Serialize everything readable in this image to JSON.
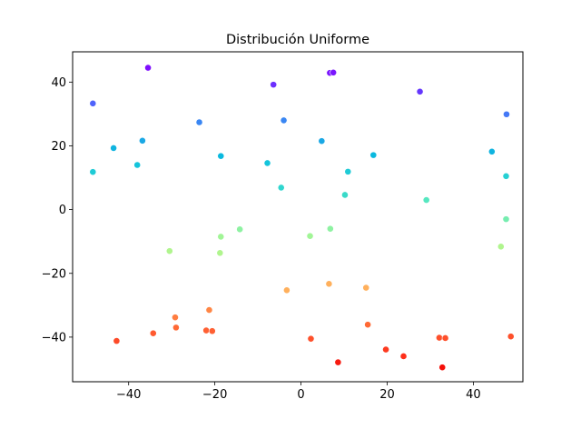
{
  "chart_data": {
    "type": "scatter",
    "title": "Distribución Uniforme",
    "xlabel": "",
    "ylabel": "",
    "xlim": [
      -53,
      51.5
    ],
    "ylim": [
      -54,
      49.5
    ],
    "xticks": [
      -40,
      -20,
      0,
      20,
      40
    ],
    "yticks": [
      -40,
      -20,
      0,
      20,
      40
    ],
    "xtick_labels": [
      "−40",
      "−20",
      "0",
      "20",
      "40"
    ],
    "ytick_labels": [
      "−40",
      "−20",
      "0",
      "20",
      "40"
    ],
    "grid": false,
    "colormap": "rainbow",
    "points": [
      {
        "x": -35.5,
        "y": 44.5,
        "color": "#7f0ffe"
      },
      {
        "x": 6.7,
        "y": 42.9,
        "color": "#7a16fe"
      },
      {
        "x": 7.5,
        "y": 43.0,
        "color": "#7a16fe"
      },
      {
        "x": -6.4,
        "y": 39.2,
        "color": "#6c2ffe"
      },
      {
        "x": 27.6,
        "y": 37.0,
        "color": "#6537fd"
      },
      {
        "x": -48.3,
        "y": 33.3,
        "color": "#4f63fb"
      },
      {
        "x": 47.7,
        "y": 29.9,
        "color": "#4478f6"
      },
      {
        "x": -23.6,
        "y": 27.4,
        "color": "#3986f3"
      },
      {
        "x": -4.0,
        "y": 28.0,
        "color": "#3986f3"
      },
      {
        "x": -36.8,
        "y": 21.6,
        "color": "#1aa8e5"
      },
      {
        "x": 4.8,
        "y": 21.5,
        "color": "#1aa8e5"
      },
      {
        "x": -43.5,
        "y": 19.3,
        "color": "#10b4e0"
      },
      {
        "x": 44.3,
        "y": 18.2,
        "color": "#10b4e0"
      },
      {
        "x": 16.8,
        "y": 17.1,
        "color": "#0ab9df"
      },
      {
        "x": -18.6,
        "y": 16.8,
        "color": "#0ab9df"
      },
      {
        "x": -7.8,
        "y": 14.6,
        "color": "#14c4db"
      },
      {
        "x": -38.0,
        "y": 14.0,
        "color": "#14c4db"
      },
      {
        "x": -48.3,
        "y": 11.8,
        "color": "#1fcbd6"
      },
      {
        "x": 10.9,
        "y": 11.9,
        "color": "#1fcbd6"
      },
      {
        "x": 47.6,
        "y": 10.5,
        "color": "#26d0d3"
      },
      {
        "x": -4.6,
        "y": 6.9,
        "color": "#30d6cf"
      },
      {
        "x": 10.2,
        "y": 4.6,
        "color": "#3adac9"
      },
      {
        "x": 29.1,
        "y": 3.0,
        "color": "#56e7c0"
      },
      {
        "x": 47.6,
        "y": -3.0,
        "color": "#76edb0"
      },
      {
        "x": 6.8,
        "y": -6.0,
        "color": "#8ef2a2"
      },
      {
        "x": -14.2,
        "y": -6.2,
        "color": "#8ef2a2"
      },
      {
        "x": 2.1,
        "y": -8.3,
        "color": "#a1f596"
      },
      {
        "x": -18.6,
        "y": -8.5,
        "color": "#a1f596"
      },
      {
        "x": 46.4,
        "y": -11.6,
        "color": "#b0f58e"
      },
      {
        "x": -30.5,
        "y": -13.0,
        "color": "#b0f58e"
      },
      {
        "x": -18.8,
        "y": -13.6,
        "color": "#b0f58e"
      },
      {
        "x": -3.3,
        "y": -25.3,
        "color": "#ffb05c"
      },
      {
        "x": 6.5,
        "y": -23.3,
        "color": "#ffb05c"
      },
      {
        "x": 15.1,
        "y": -24.5,
        "color": "#ffb05c"
      },
      {
        "x": -21.3,
        "y": -31.5,
        "color": "#ff8645"
      },
      {
        "x": -29.2,
        "y": -33.8,
        "color": "#ff7d40"
      },
      {
        "x": 15.5,
        "y": -36.1,
        "color": "#ff6935"
      },
      {
        "x": -29.0,
        "y": -37.0,
        "color": "#ff6935"
      },
      {
        "x": -22.0,
        "y": -37.9,
        "color": "#ff6033"
      },
      {
        "x": -20.6,
        "y": -38.1,
        "color": "#ff6033"
      },
      {
        "x": -34.3,
        "y": -38.8,
        "color": "#ff5a30"
      },
      {
        "x": 48.7,
        "y": -39.8,
        "color": "#fe502b"
      },
      {
        "x": 32.1,
        "y": -40.2,
        "color": "#fe502b"
      },
      {
        "x": 33.5,
        "y": -40.3,
        "color": "#fe502b"
      },
      {
        "x": 2.3,
        "y": -40.5,
        "color": "#fe502b"
      },
      {
        "x": -42.8,
        "y": -41.2,
        "color": "#fd4a28"
      },
      {
        "x": 19.7,
        "y": -43.9,
        "color": "#fd3a20"
      },
      {
        "x": 23.8,
        "y": -46.0,
        "color": "#fe2f1a"
      },
      {
        "x": 8.6,
        "y": -47.9,
        "color": "#f71b10"
      },
      {
        "x": 32.8,
        "y": -49.5,
        "color": "#f50f08"
      }
    ]
  }
}
